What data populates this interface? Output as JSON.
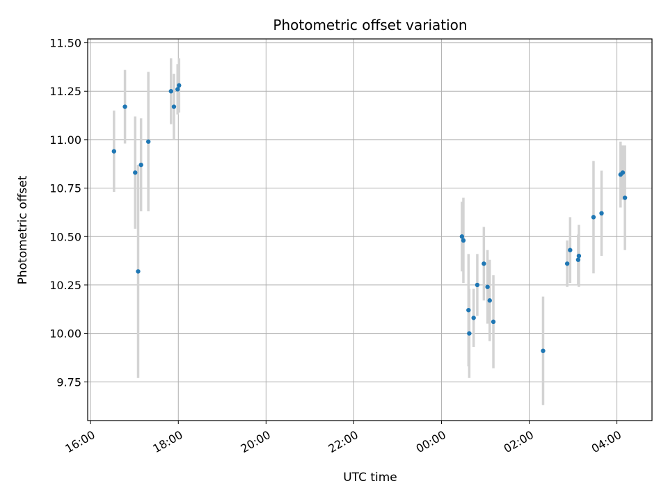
{
  "chart_data": {
    "type": "scatter",
    "title": "Photometric offset variation",
    "xlabel": "UTC time",
    "ylabel": "Photometric offset",
    "xlim": [
      "15:56",
      "28:48"
    ],
    "ylim": [
      9.55,
      11.52
    ],
    "x_ticks": [
      {
        "value": "16:00",
        "label": "16:00"
      },
      {
        "value": "18:00",
        "label": "18:00"
      },
      {
        "value": "20:00",
        "label": "20:00"
      },
      {
        "value": "22:00",
        "label": "22:00"
      },
      {
        "value": "24:00",
        "label": "00:00"
      },
      {
        "value": "26:00",
        "label": "02:00"
      },
      {
        "value": "28:00",
        "label": "04:00"
      }
    ],
    "y_ticks": [
      9.75,
      10.0,
      10.25,
      10.5,
      10.75,
      11.0,
      11.25,
      11.5
    ],
    "grid": true,
    "marker_color": "#1f77b4",
    "errorbar_color": "#d3d3d3",
    "points": [
      {
        "x": "16:32",
        "y": 10.94,
        "err": 0.21
      },
      {
        "x": "16:47",
        "y": 11.17,
        "err": 0.19
      },
      {
        "x": "17:01",
        "y": 10.83,
        "err": 0.29
      },
      {
        "x": "17:05",
        "y": 10.32,
        "err": 0.55
      },
      {
        "x": "17:09",
        "y": 10.87,
        "err": 0.24
      },
      {
        "x": "17:19",
        "y": 10.99,
        "err": 0.36
      },
      {
        "x": "17:50",
        "y": 11.25,
        "err": 0.17
      },
      {
        "x": "17:54",
        "y": 11.17,
        "err": 0.17
      },
      {
        "x": "17:59",
        "y": 11.26,
        "err": 0.13
      },
      {
        "x": "18:01",
        "y": 11.28,
        "err": 0.14
      },
      {
        "x": "24:28",
        "y": 10.5,
        "err": 0.18
      },
      {
        "x": "24:30",
        "y": 10.48,
        "err": 0.22
      },
      {
        "x": "24:37",
        "y": 10.12,
        "err": 0.29
      },
      {
        "x": "24:38",
        "y": 10.0,
        "err": 0.23
      },
      {
        "x": "24:44",
        "y": 10.08,
        "err": 0.15
      },
      {
        "x": "24:49",
        "y": 10.25,
        "err": 0.16
      },
      {
        "x": "24:58",
        "y": 10.36,
        "err": 0.19
      },
      {
        "x": "25:03",
        "y": 10.24,
        "err": 0.19
      },
      {
        "x": "25:06",
        "y": 10.17,
        "err": 0.21
      },
      {
        "x": "25:11",
        "y": 10.06,
        "err": 0.24
      },
      {
        "x": "26:19",
        "y": 9.91,
        "err": 0.28
      },
      {
        "x": "26:52",
        "y": 10.36,
        "err": 0.12
      },
      {
        "x": "26:56",
        "y": 10.43,
        "err": 0.17
      },
      {
        "x": "27:07",
        "y": 10.38,
        "err": 0.13
      },
      {
        "x": "27:08",
        "y": 10.4,
        "err": 0.16
      },
      {
        "x": "27:28",
        "y": 10.6,
        "err": 0.29
      },
      {
        "x": "27:39",
        "y": 10.62,
        "err": 0.22
      },
      {
        "x": "28:05",
        "y": 10.82,
        "err": 0.17
      },
      {
        "x": "28:08",
        "y": 10.83,
        "err": 0.14
      },
      {
        "x": "28:11",
        "y": 10.7,
        "err": 0.27
      }
    ]
  }
}
